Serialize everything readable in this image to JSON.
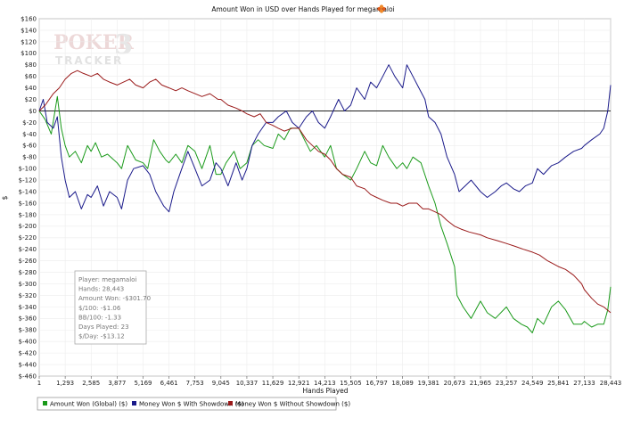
{
  "chart_data": {
    "type": "line",
    "title": "Amount Won in USD over Hands Played for megamaloi",
    "xlabel": "Hands Played",
    "ylabel": "$",
    "xlim": [
      1,
      28443
    ],
    "ylim": [
      -460,
      160
    ],
    "x_ticks": [
      1,
      1293,
      2585,
      3877,
      5169,
      6461,
      7753,
      9045,
      10337,
      11629,
      12921,
      14213,
      15505,
      16797,
      18089,
      19381,
      20673,
      21965,
      23257,
      24549,
      25841,
      27133,
      28443
    ],
    "x_tick_labels": [
      "1",
      "1,293",
      "2,585",
      "3,877",
      "5,169",
      "6,461",
      "7,753",
      "9,045",
      "10,337",
      "11,629",
      "12,921",
      "14,213",
      "15,505",
      "16,797",
      "18,089",
      "19,381",
      "20,673",
      "21,965",
      "23,257",
      "24,549",
      "25,841",
      "27,133",
      "28,443"
    ],
    "y_ticks": [
      160,
      140,
      120,
      100,
      80,
      60,
      40,
      20,
      0,
      -20,
      -40,
      -60,
      -80,
      -100,
      -120,
      -140,
      -160,
      -180,
      -200,
      -220,
      -240,
      -260,
      -280,
      -300,
      -320,
      -340,
      -360,
      -380,
      -400,
      -420,
      -440,
      -460
    ],
    "y_tick_labels": [
      "$160",
      "$140",
      "$120",
      "$100",
      "$80",
      "$60",
      "$40",
      "$20",
      "$0",
      "$-20",
      "$-40",
      "$-60",
      "$-80",
      "$-100",
      "$-120",
      "$-140",
      "$-160",
      "$-180",
      "$-200",
      "$-220",
      "$-240",
      "$-260",
      "$-280",
      "$-300",
      "$-320",
      "$-340",
      "$-360",
      "$-380",
      "$-400",
      "$-420",
      "$-440",
      "$-460"
    ],
    "grid": true,
    "zero_line": true,
    "legend_position": "bottom-left",
    "series": [
      {
        "name": "Amount Won (Global) ($)",
        "color": "#1a9a1a",
        "points": [
          [
            1,
            0
          ],
          [
            300,
            -15
          ],
          [
            600,
            -40
          ],
          [
            900,
            25
          ],
          [
            1100,
            -30
          ],
          [
            1293,
            -60
          ],
          [
            1500,
            -80
          ],
          [
            1800,
            -70
          ],
          [
            2100,
            -90
          ],
          [
            2400,
            -60
          ],
          [
            2585,
            -70
          ],
          [
            2800,
            -55
          ],
          [
            3100,
            -80
          ],
          [
            3400,
            -75
          ],
          [
            3877,
            -90
          ],
          [
            4100,
            -100
          ],
          [
            4400,
            -60
          ],
          [
            4800,
            -85
          ],
          [
            5169,
            -90
          ],
          [
            5400,
            -100
          ],
          [
            5700,
            -50
          ],
          [
            6000,
            -70
          ],
          [
            6300,
            -85
          ],
          [
            6461,
            -90
          ],
          [
            6800,
            -75
          ],
          [
            7100,
            -90
          ],
          [
            7400,
            -60
          ],
          [
            7753,
            -70
          ],
          [
            8100,
            -100
          ],
          [
            8500,
            -60
          ],
          [
            8800,
            -110
          ],
          [
            9045,
            -110
          ],
          [
            9300,
            -90
          ],
          [
            9700,
            -70
          ],
          [
            10000,
            -100
          ],
          [
            10337,
            -90
          ],
          [
            10600,
            -60
          ],
          [
            10900,
            -50
          ],
          [
            11200,
            -60
          ],
          [
            11629,
            -65
          ],
          [
            11900,
            -40
          ],
          [
            12200,
            -50
          ],
          [
            12500,
            -30
          ],
          [
            12921,
            -30
          ],
          [
            13200,
            -50
          ],
          [
            13500,
            -70
          ],
          [
            13800,
            -60
          ],
          [
            14213,
            -80
          ],
          [
            14500,
            -60
          ],
          [
            14800,
            -100
          ],
          [
            15100,
            -110
          ],
          [
            15505,
            -120
          ],
          [
            15800,
            -100
          ],
          [
            16200,
            -70
          ],
          [
            16500,
            -90
          ],
          [
            16797,
            -95
          ],
          [
            17100,
            -60
          ],
          [
            17400,
            -80
          ],
          [
            17800,
            -100
          ],
          [
            18089,
            -90
          ],
          [
            18300,
            -100
          ],
          [
            18600,
            -80
          ],
          [
            19000,
            -90
          ],
          [
            19381,
            -130
          ],
          [
            19700,
            -160
          ],
          [
            20000,
            -200
          ],
          [
            20300,
            -230
          ],
          [
            20673,
            -270
          ],
          [
            20800,
            -320
          ],
          [
            21100,
            -340
          ],
          [
            21500,
            -360
          ],
          [
            21965,
            -330
          ],
          [
            22300,
            -350
          ],
          [
            22700,
            -360
          ],
          [
            23257,
            -340
          ],
          [
            23600,
            -360
          ],
          [
            24000,
            -370
          ],
          [
            24300,
            -375
          ],
          [
            24549,
            -385
          ],
          [
            24800,
            -360
          ],
          [
            25100,
            -370
          ],
          [
            25500,
            -340
          ],
          [
            25841,
            -330
          ],
          [
            26200,
            -345
          ],
          [
            26600,
            -370
          ],
          [
            27000,
            -370
          ],
          [
            27133,
            -365
          ],
          [
            27500,
            -375
          ],
          [
            27800,
            -370
          ],
          [
            28100,
            -370
          ],
          [
            28300,
            -345
          ],
          [
            28443,
            -305
          ]
        ]
      },
      {
        "name": "Money Won $ With Showdown ($)",
        "color": "#1a1a8a",
        "points": [
          [
            1,
            0
          ],
          [
            200,
            20
          ],
          [
            400,
            -20
          ],
          [
            700,
            -30
          ],
          [
            900,
            -10
          ],
          [
            1100,
            -80
          ],
          [
            1293,
            -120
          ],
          [
            1500,
            -150
          ],
          [
            1800,
            -140
          ],
          [
            2100,
            -170
          ],
          [
            2400,
            -145
          ],
          [
            2585,
            -150
          ],
          [
            2900,
            -130
          ],
          [
            3200,
            -165
          ],
          [
            3500,
            -140
          ],
          [
            3877,
            -150
          ],
          [
            4100,
            -170
          ],
          [
            4400,
            -120
          ],
          [
            4700,
            -100
          ],
          [
            5169,
            -95
          ],
          [
            5500,
            -110
          ],
          [
            5800,
            -140
          ],
          [
            6200,
            -165
          ],
          [
            6461,
            -175
          ],
          [
            6700,
            -140
          ],
          [
            7000,
            -110
          ],
          [
            7400,
            -70
          ],
          [
            7753,
            -100
          ],
          [
            8100,
            -130
          ],
          [
            8500,
            -120
          ],
          [
            8800,
            -90
          ],
          [
            9045,
            -100
          ],
          [
            9400,
            -130
          ],
          [
            9800,
            -90
          ],
          [
            10100,
            -120
          ],
          [
            10337,
            -100
          ],
          [
            10600,
            -60
          ],
          [
            10900,
            -40
          ],
          [
            11300,
            -20
          ],
          [
            11629,
            -20
          ],
          [
            11900,
            -10
          ],
          [
            12300,
            0
          ],
          [
            12600,
            -20
          ],
          [
            12921,
            -30
          ],
          [
            13300,
            -10
          ],
          [
            13600,
            0
          ],
          [
            13900,
            -20
          ],
          [
            14213,
            -30
          ],
          [
            14500,
            -10
          ],
          [
            14900,
            20
          ],
          [
            15200,
            0
          ],
          [
            15505,
            10
          ],
          [
            15800,
            40
          ],
          [
            16200,
            20
          ],
          [
            16500,
            50
          ],
          [
            16797,
            40
          ],
          [
            17100,
            60
          ],
          [
            17400,
            80
          ],
          [
            17700,
            60
          ],
          [
            18089,
            40
          ],
          [
            18300,
            80
          ],
          [
            18600,
            60
          ],
          [
            18900,
            40
          ],
          [
            19200,
            20
          ],
          [
            19381,
            -10
          ],
          [
            19700,
            -20
          ],
          [
            20000,
            -40
          ],
          [
            20300,
            -80
          ],
          [
            20673,
            -110
          ],
          [
            20900,
            -140
          ],
          [
            21200,
            -130
          ],
          [
            21500,
            -120
          ],
          [
            21965,
            -140
          ],
          [
            22300,
            -150
          ],
          [
            22700,
            -140
          ],
          [
            23000,
            -130
          ],
          [
            23257,
            -125
          ],
          [
            23600,
            -135
          ],
          [
            23900,
            -140
          ],
          [
            24200,
            -130
          ],
          [
            24549,
            -125
          ],
          [
            24800,
            -100
          ],
          [
            25100,
            -110
          ],
          [
            25500,
            -95
          ],
          [
            25841,
            -90
          ],
          [
            26200,
            -80
          ],
          [
            26600,
            -70
          ],
          [
            27000,
            -65
          ],
          [
            27133,
            -60
          ],
          [
            27500,
            -50
          ],
          [
            27900,
            -40
          ],
          [
            28100,
            -30
          ],
          [
            28300,
            0
          ],
          [
            28443,
            45
          ]
        ]
      },
      {
        "name": "Money Won $ Without Showdown ($)",
        "color": "#9a1a1a",
        "points": [
          [
            1,
            0
          ],
          [
            300,
            10
          ],
          [
            700,
            30
          ],
          [
            1000,
            40
          ],
          [
            1293,
            55
          ],
          [
            1600,
            65
          ],
          [
            1900,
            70
          ],
          [
            2200,
            65
          ],
          [
            2585,
            60
          ],
          [
            2900,
            65
          ],
          [
            3200,
            55
          ],
          [
            3500,
            50
          ],
          [
            3877,
            45
          ],
          [
            4200,
            50
          ],
          [
            4500,
            55
          ],
          [
            4800,
            45
          ],
          [
            5169,
            40
          ],
          [
            5500,
            50
          ],
          [
            5800,
            55
          ],
          [
            6100,
            45
          ],
          [
            6461,
            40
          ],
          [
            6800,
            35
          ],
          [
            7100,
            40
          ],
          [
            7400,
            35
          ],
          [
            7753,
            30
          ],
          [
            8100,
            25
          ],
          [
            8500,
            30
          ],
          [
            8900,
            20
          ],
          [
            9045,
            20
          ],
          [
            9400,
            10
          ],
          [
            9800,
            5
          ],
          [
            10100,
            0
          ],
          [
            10337,
            -5
          ],
          [
            10700,
            -10
          ],
          [
            11000,
            -5
          ],
          [
            11300,
            -20
          ],
          [
            11629,
            -25
          ],
          [
            11900,
            -30
          ],
          [
            12200,
            -35
          ],
          [
            12600,
            -30
          ],
          [
            12921,
            -30
          ],
          [
            13300,
            -50
          ],
          [
            13600,
            -60
          ],
          [
            13900,
            -70
          ],
          [
            14213,
            -75
          ],
          [
            14500,
            -85
          ],
          [
            14800,
            -100
          ],
          [
            15100,
            -110
          ],
          [
            15505,
            -115
          ],
          [
            15800,
            -130
          ],
          [
            16200,
            -135
          ],
          [
            16500,
            -145
          ],
          [
            16797,
            -150
          ],
          [
            17100,
            -155
          ],
          [
            17500,
            -160
          ],
          [
            17800,
            -160
          ],
          [
            18089,
            -165
          ],
          [
            18400,
            -160
          ],
          [
            18800,
            -160
          ],
          [
            19100,
            -170
          ],
          [
            19381,
            -170
          ],
          [
            19700,
            -175
          ],
          [
            20000,
            -180
          ],
          [
            20300,
            -190
          ],
          [
            20673,
            -200
          ],
          [
            21000,
            -205
          ],
          [
            21400,
            -210
          ],
          [
            21965,
            -215
          ],
          [
            22300,
            -220
          ],
          [
            22800,
            -225
          ],
          [
            23257,
            -230
          ],
          [
            23700,
            -235
          ],
          [
            24100,
            -240
          ],
          [
            24549,
            -245
          ],
          [
            24900,
            -250
          ],
          [
            25300,
            -260
          ],
          [
            25841,
            -270
          ],
          [
            26200,
            -275
          ],
          [
            26600,
            -285
          ],
          [
            27000,
            -300
          ],
          [
            27133,
            -310
          ],
          [
            27500,
            -325
          ],
          [
            27800,
            -335
          ],
          [
            28100,
            -340
          ],
          [
            28443,
            -350
          ]
        ]
      }
    ]
  },
  "watermark": {
    "line1": "POKER",
    "line2": "TRACKER",
    "digit": "3"
  },
  "stats_box": {
    "lines": [
      "Player: megamaloi",
      "Hands: 28,443",
      "Amount Won: -$301.70",
      "$/100: -$1.06",
      "BB/100: -1.33",
      "Days Played: 23",
      "$/Day: -$13.12"
    ]
  }
}
